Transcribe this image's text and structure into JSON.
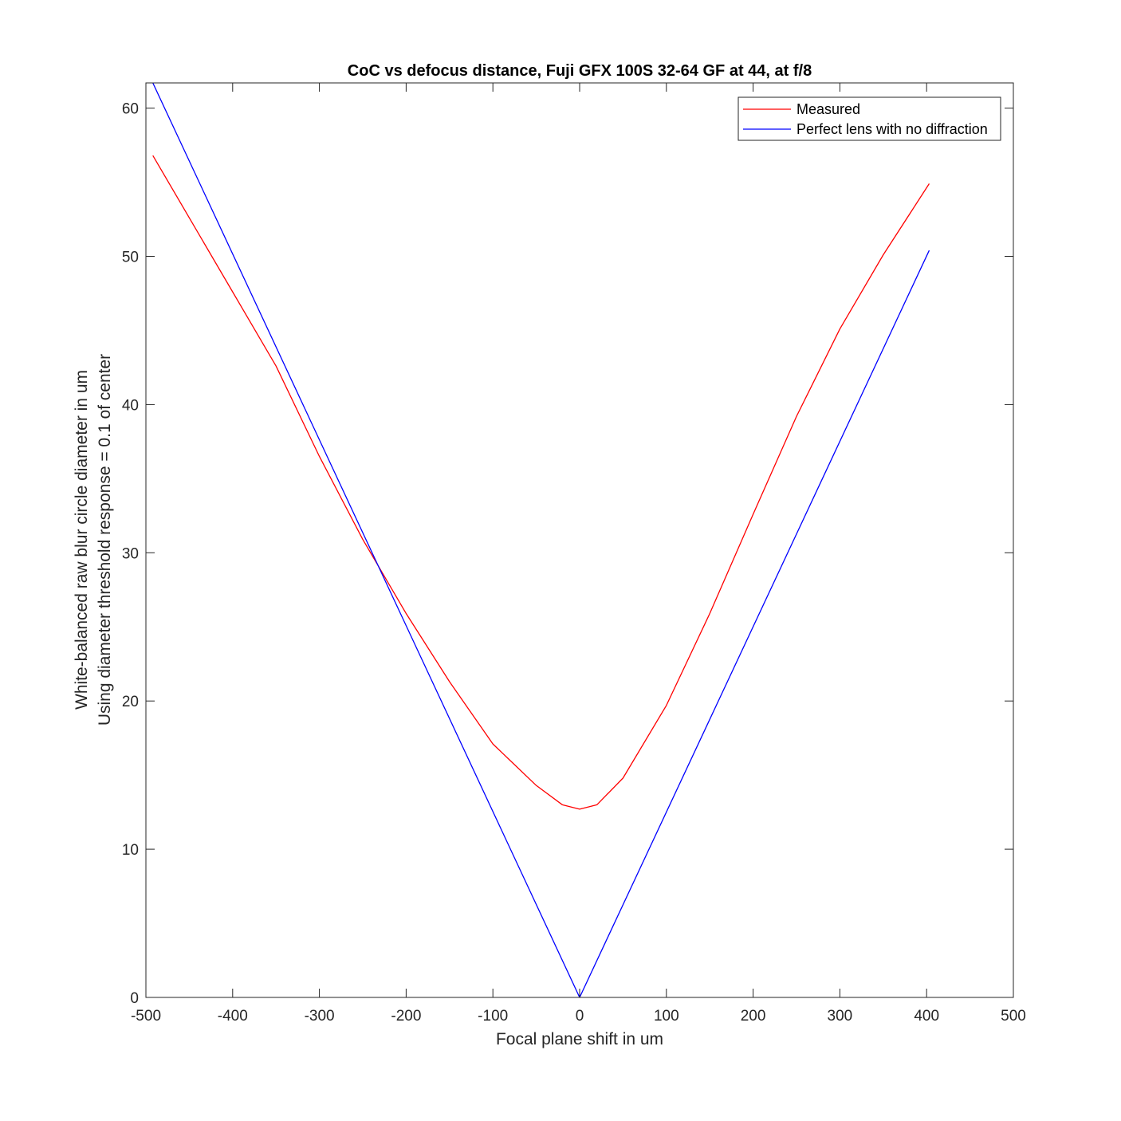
{
  "chart_data": {
    "type": "line",
    "title": "CoC vs defocus distance, Fuji GFX 100S 32-64 GF at 44, at f/8",
    "xlabel": "Focal plane shift in um",
    "ylabel": [
      "White-balanced raw blur circle diameter in um",
      "Using diameter threshold response = 0.1 of center"
    ],
    "xlim": [
      -500,
      500
    ],
    "ylim": [
      0,
      61.7
    ],
    "xticks": [
      -500,
      -400,
      -300,
      -200,
      -100,
      0,
      100,
      200,
      300,
      400,
      500
    ],
    "yticks": [
      0,
      10,
      20,
      30,
      40,
      50,
      60
    ],
    "grid": false,
    "legend_position": "top-right",
    "colors": {
      "axis": "#262626",
      "legend_border": "#262626"
    },
    "series": [
      {
        "name": "Measured",
        "color": "#ff0000",
        "x": [
          -492,
          -450,
          -400,
          -350,
          -300,
          -250,
          -200,
          -150,
          -100,
          -50,
          -20,
          0,
          20,
          50,
          100,
          150,
          200,
          250,
          300,
          350,
          403
        ],
        "y": [
          56.8,
          52.6,
          47.6,
          42.6,
          36.5,
          30.9,
          25.9,
          21.3,
          17.1,
          14.3,
          13.0,
          12.7,
          13.0,
          14.8,
          19.7,
          25.9,
          32.6,
          39.2,
          45.1,
          50.1,
          54.9
        ]
      },
      {
        "name": "Perfect lens with no diffraction",
        "color": "#0000ff",
        "x": [
          -492,
          0,
          403
        ],
        "y": [
          61.7,
          0,
          50.4
        ]
      }
    ]
  }
}
